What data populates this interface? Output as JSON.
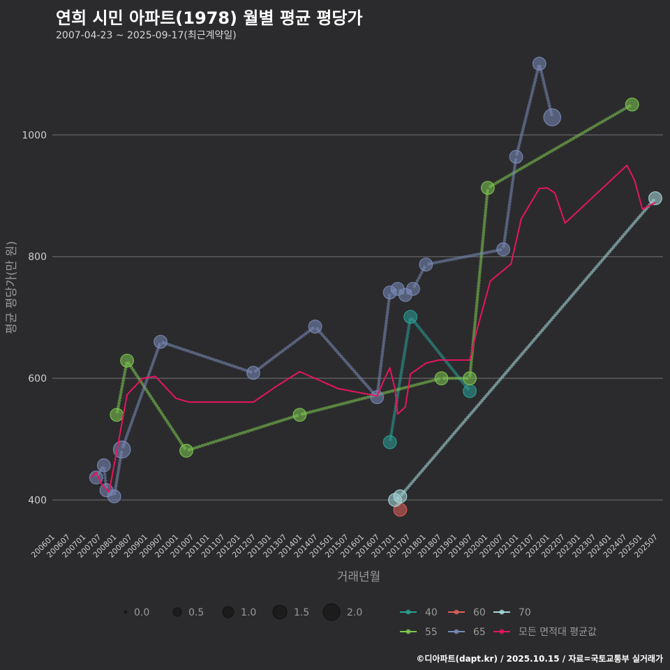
{
  "header": {
    "title": "연희 시민 아파트(1978) 월별 평균 평당가",
    "subtitle": "2007-04-23 ~ 2025-09-17(최근계약일)"
  },
  "footer": {
    "credit": "©디아파트(dapt.kr) / 2025.10.15 / 자료=국토교통부 실거래가"
  },
  "chart_data": {
    "type": "scatter",
    "title": "연희 시민 아파트(1978) 월별 평균 평당가",
    "xlabel": "거래년월",
    "ylabel": "평균 평당가(만 원)",
    "ylim": [
      350,
      1130
    ],
    "yticks": [
      400,
      600,
      800,
      1000
    ],
    "x_tick_labels": [
      "200601",
      "200607",
      "200701",
      "200707",
      "200801",
      "200807",
      "200901",
      "200907",
      "201001",
      "201007",
      "201101",
      "201107",
      "201201",
      "201207",
      "201301",
      "201307",
      "201401",
      "201407",
      "201501",
      "201507",
      "201601",
      "201607",
      "201701",
      "201707",
      "201801",
      "201807",
      "201901",
      "201907",
      "202001",
      "202007",
      "202101",
      "202107",
      "202201",
      "202207",
      "202301",
      "202307",
      "202401",
      "202407",
      "202501",
      "202507"
    ],
    "size_legend": {
      "title": "",
      "values": [
        "0.0",
        "0.5",
        "1.0",
        "1.5",
        "2.0"
      ]
    },
    "area_legend": [
      {
        "name": "40",
        "color": "#2aa198"
      },
      {
        "name": "60",
        "color": "#e0605a"
      },
      {
        "name": "70",
        "color": "#a8dadc"
      },
      {
        "name": "55",
        "color": "#7ec850"
      },
      {
        "name": "65",
        "color": "#7a8ab8"
      },
      {
        "name": "모든 면적대 평균값",
        "color": "#e8145f"
      }
    ],
    "series": [
      {
        "name": "40",
        "color": "#2aa198",
        "points": [
          {
            "x": "2016-12",
            "y": 495,
            "s": 1.2
          },
          {
            "x": "2017-08",
            "y": 701,
            "s": 1.2
          },
          {
            "x": "2019-07",
            "y": 579,
            "s": 1.2
          }
        ]
      },
      {
        "name": "55",
        "color": "#7ec850",
        "points": [
          {
            "x": "2008-02",
            "y": 540,
            "s": 1.2
          },
          {
            "x": "2008-06",
            "y": 629,
            "s": 1.2
          },
          {
            "x": "2010-05",
            "y": 481,
            "s": 1.2
          },
          {
            "x": "2014-01",
            "y": 540,
            "s": 1.2
          },
          {
            "x": "2018-08",
            "y": 600,
            "s": 1.2
          },
          {
            "x": "2019-07",
            "y": 600,
            "s": 1.2
          },
          {
            "x": "2020-02",
            "y": 913,
            "s": 1.2
          },
          {
            "x": "2024-10",
            "y": 1050,
            "s": 1.2
          }
        ]
      },
      {
        "name": "60",
        "color": "#e0605a",
        "points": [
          {
            "x": "2017-04",
            "y": 384,
            "s": 1.2
          }
        ]
      },
      {
        "name": "65",
        "color": "#7a8ab8",
        "points": [
          {
            "x": "2007-06",
            "y": 437,
            "s": 1.2
          },
          {
            "x": "2007-10",
            "y": 416,
            "s": 1.2
          },
          {
            "x": "2007-09",
            "y": 457,
            "s": 1.2
          },
          {
            "x": "2008-01",
            "y": 406,
            "s": 1.2
          },
          {
            "x": "2008-04",
            "y": 483,
            "s": 2.0
          },
          {
            "x": "2009-07",
            "y": 660,
            "s": 1.2
          },
          {
            "x": "2012-07",
            "y": 609,
            "s": 1.2
          },
          {
            "x": "2014-07",
            "y": 685,
            "s": 1.2
          },
          {
            "x": "2016-07",
            "y": 569,
            "s": 1.2
          },
          {
            "x": "2016-12",
            "y": 741,
            "s": 1.2
          },
          {
            "x": "2017-03",
            "y": 747,
            "s": 1.2
          },
          {
            "x": "2017-06",
            "y": 737,
            "s": 1.2
          },
          {
            "x": "2017-09",
            "y": 747,
            "s": 1.2
          },
          {
            "x": "2018-02",
            "y": 787,
            "s": 1.2
          },
          {
            "x": "2020-08",
            "y": 812,
            "s": 1.2
          },
          {
            "x": "2021-01",
            "y": 964,
            "s": 1.2
          },
          {
            "x": "2021-10",
            "y": 1117,
            "s": 1.2
          },
          {
            "x": "2022-03",
            "y": 1029,
            "s": 2.0
          }
        ]
      },
      {
        "name": "70",
        "color": "#a8dadc",
        "points": [
          {
            "x": "2017-02",
            "y": 400,
            "s": 1.2
          },
          {
            "x": "2017-04",
            "y": 406,
            "s": 1.2
          },
          {
            "x": "2025-07",
            "y": 896,
            "s": 1.2
          }
        ]
      },
      {
        "name": "모든 면적대 평균값",
        "color": "#e8145f",
        "points": [
          {
            "x": "2007-04",
            "y": 437
          },
          {
            "x": "2007-06",
            "y": 445
          },
          {
            "x": "2007-08",
            "y": 427
          },
          {
            "x": "2007-11",
            "y": 413
          },
          {
            "x": "2008-02",
            "y": 480
          },
          {
            "x": "2008-06",
            "y": 573
          },
          {
            "x": "2008-12",
            "y": 600
          },
          {
            "x": "2009-05",
            "y": 603
          },
          {
            "x": "2010-01",
            "y": 567
          },
          {
            "x": "2010-06",
            "y": 561
          },
          {
            "x": "2012-07",
            "y": 561
          },
          {
            "x": "2013-04",
            "y": 587
          },
          {
            "x": "2014-01",
            "y": 611
          },
          {
            "x": "2015-04",
            "y": 583
          },
          {
            "x": "2016-07",
            "y": 571
          },
          {
            "x": "2016-10",
            "y": 600
          },
          {
            "x": "2016-12",
            "y": 617
          },
          {
            "x": "2017-02",
            "y": 583
          },
          {
            "x": "2017-03",
            "y": 541
          },
          {
            "x": "2017-06",
            "y": 553
          },
          {
            "x": "2017-08",
            "y": 607
          },
          {
            "x": "2018-02",
            "y": 625
          },
          {
            "x": "2018-07",
            "y": 630
          },
          {
            "x": "2019-07",
            "y": 630
          },
          {
            "x": "2019-10",
            "y": 683
          },
          {
            "x": "2020-03",
            "y": 760
          },
          {
            "x": "2020-11",
            "y": 788
          },
          {
            "x": "2021-03",
            "y": 862
          },
          {
            "x": "2021-10",
            "y": 912
          },
          {
            "x": "2022-01",
            "y": 913
          },
          {
            "x": "2022-04",
            "y": 905
          },
          {
            "x": "2022-08",
            "y": 855
          },
          {
            "x": "2024-08",
            "y": 950
          },
          {
            "x": "2024-11",
            "y": 925
          },
          {
            "x": "2025-02",
            "y": 878
          },
          {
            "x": "2025-07",
            "y": 889
          }
        ]
      }
    ]
  }
}
